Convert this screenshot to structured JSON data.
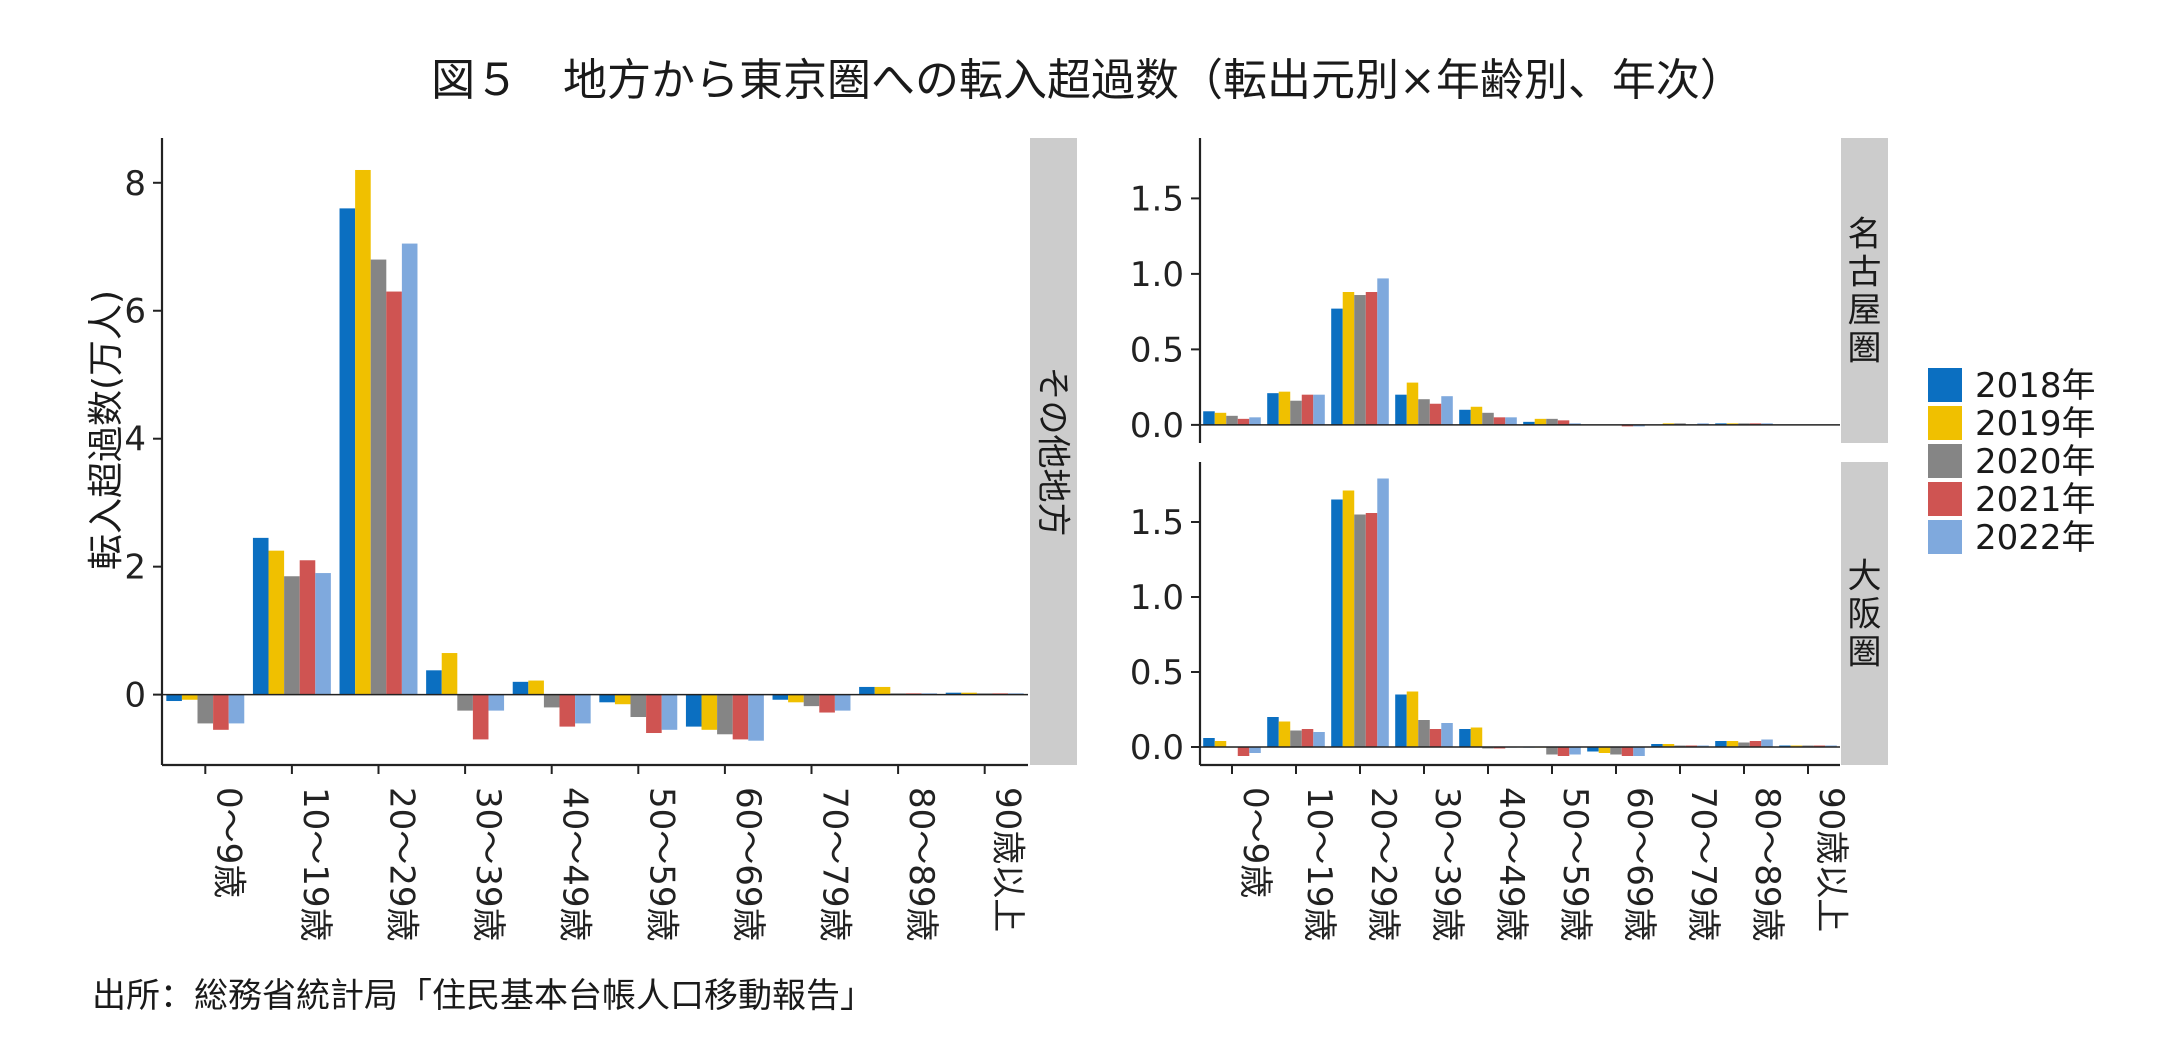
{
  "title": "図５　地方から東京圏への転入超過数（転出元別×年齢別、年次）",
  "source": "出所：総務省統計局「住民基本台帳人口移動報告」",
  "chart_data": {
    "type": "bar",
    "ylabel": "転入超過数(万人)",
    "categories": [
      "0～9歳",
      "10～19歳",
      "20～29歳",
      "30～39歳",
      "40～49歳",
      "50～59歳",
      "60～69歳",
      "70～79歳",
      "80～89歳",
      "90歳以上"
    ],
    "legend": {
      "position": "right",
      "entries": [
        "2018年",
        "2019年",
        "2020年",
        "2021年",
        "2022年"
      ]
    },
    "colors": [
      "#0B6FC1",
      "#F0C000",
      "#858585",
      "#CF5452",
      "#7FA9DD"
    ],
    "panels": [
      {
        "name": "その他地方",
        "ylim": [
          -1.1,
          8.7
        ],
        "yticks": [
          0,
          2,
          4,
          6,
          8
        ],
        "series": [
          {
            "name": "2018年",
            "values": [
              -0.1,
              2.45,
              7.6,
              0.38,
              0.2,
              -0.12,
              -0.5,
              -0.08,
              0.12,
              0.03
            ]
          },
          {
            "name": "2019年",
            "values": [
              -0.08,
              2.25,
              8.2,
              0.65,
              0.22,
              -0.15,
              -0.55,
              -0.12,
              0.12,
              0.03
            ]
          },
          {
            "name": "2020年",
            "values": [
              -0.45,
              1.85,
              6.8,
              -0.25,
              -0.2,
              -0.35,
              -0.62,
              -0.18,
              0.02,
              0.02
            ]
          },
          {
            "name": "2021年",
            "values": [
              -0.55,
              2.1,
              6.3,
              -0.7,
              -0.5,
              -0.6,
              -0.7,
              -0.28,
              0.02,
              0.02
            ]
          },
          {
            "name": "2022年",
            "values": [
              -0.45,
              1.9,
              7.05,
              -0.25,
              -0.45,
              -0.55,
              -0.72,
              -0.25,
              0.02,
              0.02
            ]
          }
        ]
      },
      {
        "name": "名古屋圏",
        "ylim": [
          -0.12,
          1.9
        ],
        "yticks": [
          0.0,
          0.5,
          1.0,
          1.5
        ],
        "series": [
          {
            "name": "2018年",
            "values": [
              0.09,
              0.21,
              0.77,
              0.2,
              0.1,
              0.02,
              0.0,
              0.0,
              0.01,
              0.0
            ]
          },
          {
            "name": "2019年",
            "values": [
              0.08,
              0.22,
              0.88,
              0.28,
              0.12,
              0.04,
              0.0,
              0.01,
              0.01,
              0.0
            ]
          },
          {
            "name": "2020年",
            "values": [
              0.06,
              0.16,
              0.86,
              0.17,
              0.08,
              0.04,
              0.0,
              0.01,
              0.01,
              0.0
            ]
          },
          {
            "name": "2021年",
            "values": [
              0.04,
              0.2,
              0.88,
              0.14,
              0.05,
              0.03,
              -0.01,
              0.0,
              0.01,
              0.0
            ]
          },
          {
            "name": "2022年",
            "values": [
              0.05,
              0.2,
              0.97,
              0.19,
              0.05,
              0.01,
              -0.01,
              0.01,
              0.01,
              0.0
            ]
          }
        ]
      },
      {
        "name": "大阪圏",
        "ylim": [
          -0.12,
          1.9
        ],
        "yticks": [
          0.0,
          0.5,
          1.0,
          1.5
        ],
        "series": [
          {
            "name": "2018年",
            "values": [
              0.06,
              0.2,
              1.65,
              0.35,
              0.12,
              0.0,
              -0.03,
              0.02,
              0.04,
              0.01
            ]
          },
          {
            "name": "2019年",
            "values": [
              0.04,
              0.17,
              1.71,
              0.37,
              0.13,
              0.0,
              -0.04,
              0.02,
              0.04,
              0.01
            ]
          },
          {
            "name": "2020年",
            "values": [
              0.0,
              0.11,
              1.55,
              0.18,
              -0.01,
              -0.05,
              -0.05,
              0.01,
              0.03,
              0.01
            ]
          },
          {
            "name": "2021年",
            "values": [
              -0.06,
              0.12,
              1.56,
              0.12,
              -0.01,
              -0.06,
              -0.06,
              0.01,
              0.04,
              0.01
            ]
          },
          {
            "name": "2022年",
            "values": [
              -0.04,
              0.1,
              1.79,
              0.16,
              0.0,
              -0.05,
              -0.06,
              0.01,
              0.05,
              0.01
            ]
          }
        ]
      }
    ]
  }
}
